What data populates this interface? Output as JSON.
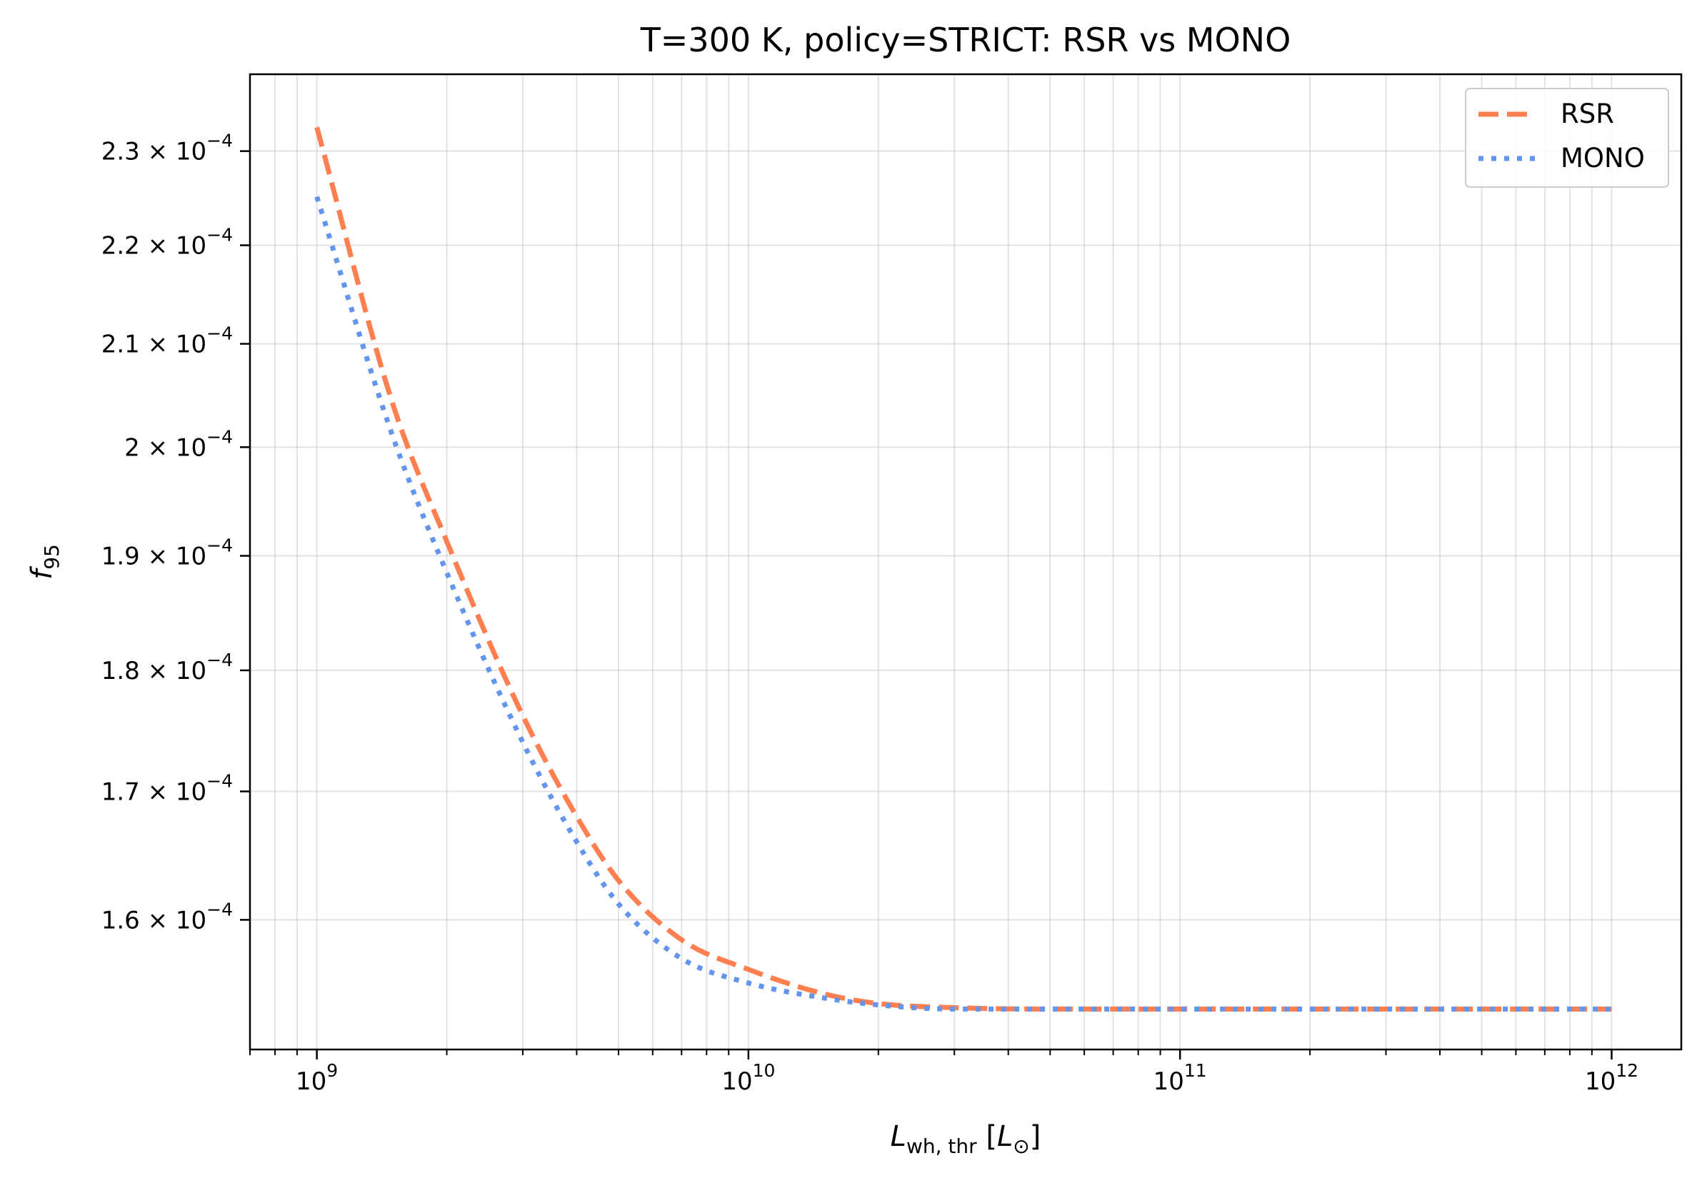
{
  "chart_data": {
    "type": "line",
    "title": "T=300 K, policy=STRICT: RSR vs MONO",
    "xlabel": {
      "base": "L",
      "sub": "wh, thr",
      "unit_open": " [",
      "unit_sym": "L",
      "unit_sub": "⊙",
      "unit_close": "]"
    },
    "ylabel": {
      "base": "f",
      "sub": "95"
    },
    "xscale": "log",
    "yscale": "log",
    "xlim": [
      700000000.0,
      1450000000000.0
    ],
    "ylim": [
      0.0001505,
      0.0002385
    ],
    "grid": true,
    "legend_position": "top-right",
    "x_ticks": [
      {
        "value": 1000000000.0,
        "base": "10",
        "exp": "9"
      },
      {
        "value": 10000000000.0,
        "base": "10",
        "exp": "10"
      },
      {
        "value": 100000000000.0,
        "base": "10",
        "exp": "11"
      },
      {
        "value": 1000000000000.0,
        "base": "10",
        "exp": "12"
      }
    ],
    "y_ticks": [
      {
        "value": 0.00023,
        "mant": "2.3",
        "times": " × ",
        "base": "10",
        "exp": "−4"
      },
      {
        "value": 0.00022,
        "mant": "2.2",
        "times": " × ",
        "base": "10",
        "exp": "−4"
      },
      {
        "value": 0.00021,
        "mant": "2.1",
        "times": " × ",
        "base": "10",
        "exp": "−4"
      },
      {
        "value": 0.0002,
        "mant": "2",
        "times": " × ",
        "base": "10",
        "exp": "−4"
      },
      {
        "value": 0.00019,
        "mant": "1.9",
        "times": " × ",
        "base": "10",
        "exp": "−4"
      },
      {
        "value": 0.00018,
        "mant": "1.8",
        "times": " × ",
        "base": "10",
        "exp": "−4"
      },
      {
        "value": 0.00017,
        "mant": "1.7",
        "times": " × ",
        "base": "10",
        "exp": "−4"
      },
      {
        "value": 0.00016,
        "mant": "1.6",
        "times": " × ",
        "base": "10",
        "exp": "−4"
      }
    ],
    "series": [
      {
        "name": "RSR",
        "color": "#ff7f50",
        "style": "dashed",
        "x": [
          1000000000.0,
          1500000000.0,
          2000000000.0,
          3000000000.0,
          4000000000.0,
          5000000000.0,
          7000000000.0,
          10000000000.0,
          15000000000.0,
          20000000000.0,
          30000000000.0,
          50000000000.0,
          100000000000.0,
          1000000000000.0
        ],
        "y": [
          0.0002326,
          0.0002041,
          0.0001913,
          0.0001762,
          0.000168,
          0.000163,
          0.0001585,
          0.0001563,
          0.0001545,
          0.0001538,
          0.0001535,
          0.0001534,
          0.0001534,
          0.0001534
        ]
      },
      {
        "name": "MONO",
        "color": "#6495ed",
        "style": "dotted",
        "x": [
          1000000000.0,
          1500000000.0,
          2000000000.0,
          3000000000.0,
          4000000000.0,
          5000000000.0,
          7000000000.0,
          10000000000.0,
          15000000000.0,
          20000000000.0,
          30000000000.0,
          50000000000.0,
          100000000000.0,
          1000000000000.0
        ],
        "y": [
          0.0002251,
          0.000201,
          0.0001885,
          0.000174,
          0.000166,
          0.0001612,
          0.0001571,
          0.0001553,
          0.0001542,
          0.0001537,
          0.0001534,
          0.0001534,
          0.0001534,
          0.0001534
        ]
      }
    ]
  }
}
